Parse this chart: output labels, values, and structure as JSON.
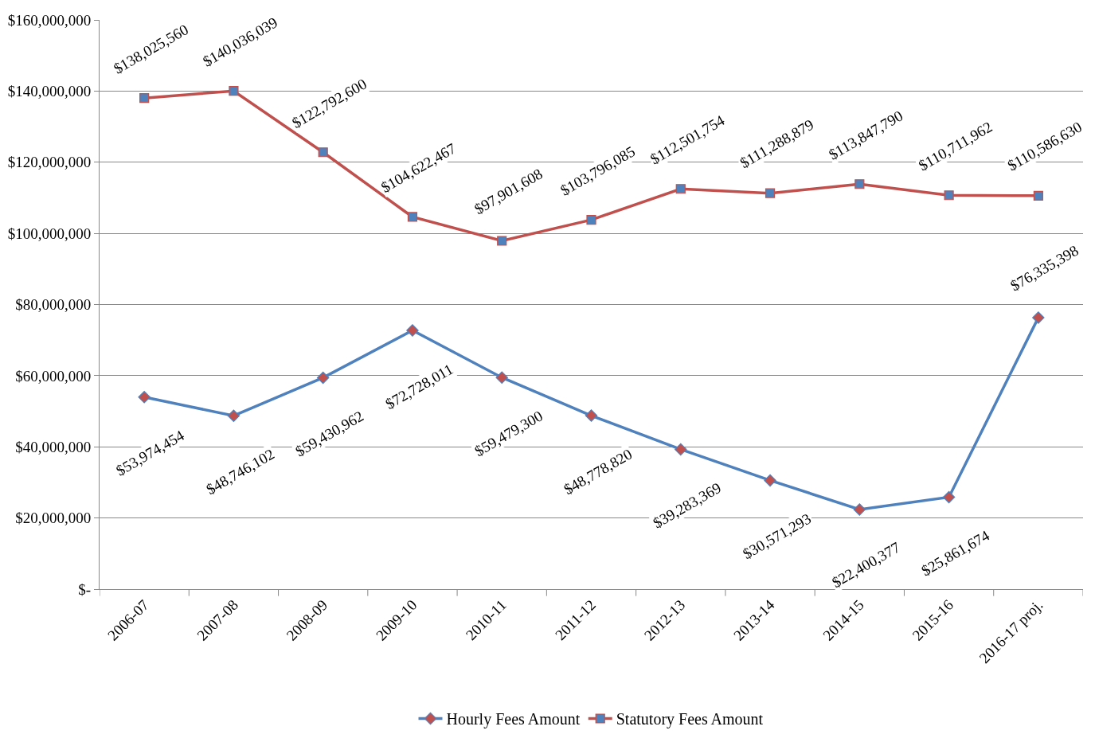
{
  "chart_data": {
    "type": "line",
    "categories": [
      "2006-07",
      "2007-08",
      "2008-09",
      "2009-10",
      "2010-11",
      "2011-12",
      "2012-13",
      "2013-14",
      "2014-15",
      "2015-16",
      "2016-17 proj."
    ],
    "series": [
      {
        "name": "Hourly Fees Amount",
        "color": "#4f81bd",
        "marker": "diamond",
        "values": [
          53974454,
          48746102,
          59430962,
          72728011,
          59479300,
          48778820,
          39283369,
          30571293,
          22400377,
          25861674,
          76335398
        ],
        "value_labels": [
          "$53,974,454",
          "$48,746,102",
          "$59,430,962",
          "$72,728,011",
          "$59,479,300",
          "$48,778,820",
          "$39,283,369",
          "$30,571,293",
          "$22,400,377",
          "$25,861,674",
          "$76,335,398"
        ]
      },
      {
        "name": "Statutory Fees Amount",
        "color": "#c0504d",
        "marker": "square",
        "values": [
          138025560,
          140036039,
          122792600,
          104622467,
          97901608,
          103796085,
          112501754,
          111288879,
          113847790,
          110711962,
          110586630
        ],
        "value_labels": [
          "$138,025,560",
          "$140,036,039",
          "$122,792,600",
          "$104,622,467",
          "$97,901,608",
          "$103,796,085",
          "$112,501,754",
          "$111,288,879",
          "$113,847,790",
          "$110,711,962",
          "$110,586,630"
        ]
      }
    ],
    "ylim": [
      0,
      160000000
    ],
    "yticks": [
      {
        "value": 0,
        "label": "$-"
      },
      {
        "value": 20000000,
        "label": "$20,000,000"
      },
      {
        "value": 40000000,
        "label": "$40,000,000"
      },
      {
        "value": 60000000,
        "label": "$60,000,000"
      },
      {
        "value": 80000000,
        "label": "$80,000,000"
      },
      {
        "value": 100000000,
        "label": "$100,000,000"
      },
      {
        "value": 120000000,
        "label": "$120,000,000"
      },
      {
        "value": 140000000,
        "label": "$140,000,000"
      },
      {
        "value": 160000000,
        "label": "$160,000,000"
      }
    ],
    "grid": "y",
    "legend": "bottom"
  }
}
